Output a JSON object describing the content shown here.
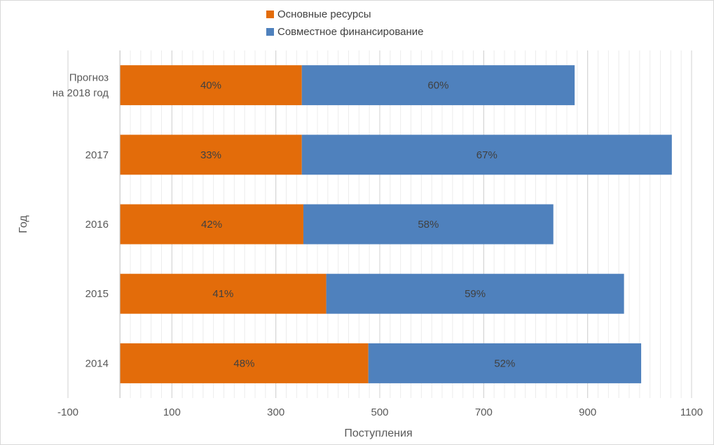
{
  "chart_data": {
    "type": "bar",
    "orientation": "horizontal",
    "stacked": true,
    "categories": [
      "Прогноз на 2018 год",
      "2017",
      "2016",
      "2015",
      "2014"
    ],
    "category_lines": [
      [
        "Прогноз",
        "на 2018 год"
      ],
      [
        "2017"
      ],
      [
        "2016"
      ],
      [
        "2015"
      ],
      [
        "2014"
      ]
    ],
    "series": [
      {
        "name": "Основные ресурсы",
        "color": "#E36C0A",
        "values": [
          350,
          350,
          353,
          397,
          478
        ],
        "labels": [
          "40%",
          "33%",
          "42%",
          "41%",
          "48%"
        ]
      },
      {
        "name": "Совместное финансирование",
        "color": "#4F81BD",
        "values": [
          525,
          712,
          481,
          573,
          525
        ],
        "labels": [
          "60%",
          "67%",
          "58%",
          "59%",
          "52%"
        ]
      }
    ],
    "xlabel": "Поступления",
    "ylabel": "Год",
    "xlim": [
      -100,
      1100
    ],
    "xticks": [
      -100,
      100,
      300,
      500,
      700,
      900,
      1100
    ],
    "xtick_labels": [
      "-100",
      "100",
      "300",
      "500",
      "700",
      "900",
      "1100"
    ],
    "minor_grid_step": 20,
    "grid": true,
    "legend_position": "top"
  }
}
